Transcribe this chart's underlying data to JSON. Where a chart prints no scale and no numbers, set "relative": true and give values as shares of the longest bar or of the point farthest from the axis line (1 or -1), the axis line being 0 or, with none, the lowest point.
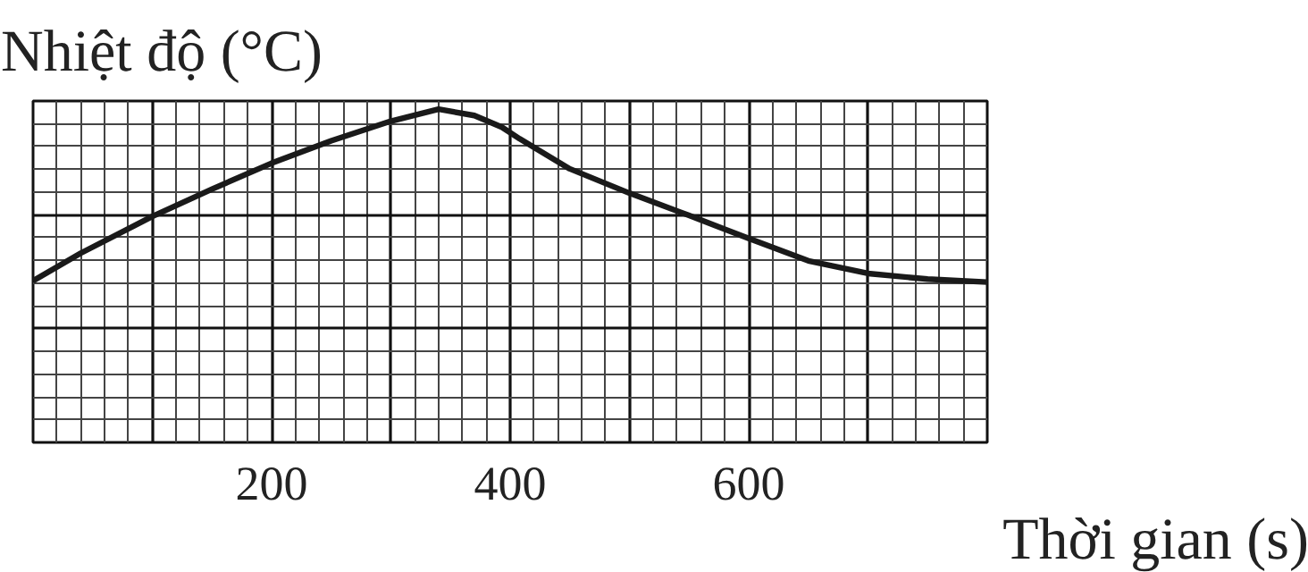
{
  "chart_data": {
    "type": "line",
    "xlabel": "Thời gian (s)",
    "ylabel": "Nhiệt độ (°C)",
    "relative": true,
    "xlim": [
      0,
      800
    ],
    "xticks": [
      {
        "value": 0,
        "label": null
      },
      {
        "value": 100,
        "label": null
      },
      200,
      {
        "value": 300,
        "label": null
      },
      400,
      {
        "value": 500,
        "label": null
      },
      600,
      {
        "value": 700,
        "label": null
      },
      {
        "value": 800,
        "label": null
      }
    ],
    "grid": true,
    "marker": "none",
    "line_style": "solid",
    "series": [
      {
        "color": "#1a1a1a",
        "x": [
          0,
          40,
          100,
          150,
          200,
          250,
          300,
          340,
          370,
          393,
          408,
          450,
          500,
          550,
          600,
          650,
          700,
          750,
          800
        ],
        "values": [
          0.485,
          0.568,
          0.678,
          0.76,
          0.838,
          0.905,
          0.964,
          1.0,
          0.981,
          0.946,
          0.911,
          0.821,
          0.748,
          0.681,
          0.612,
          0.545,
          0.507,
          0.49,
          0.481
        ]
      }
    ]
  }
}
